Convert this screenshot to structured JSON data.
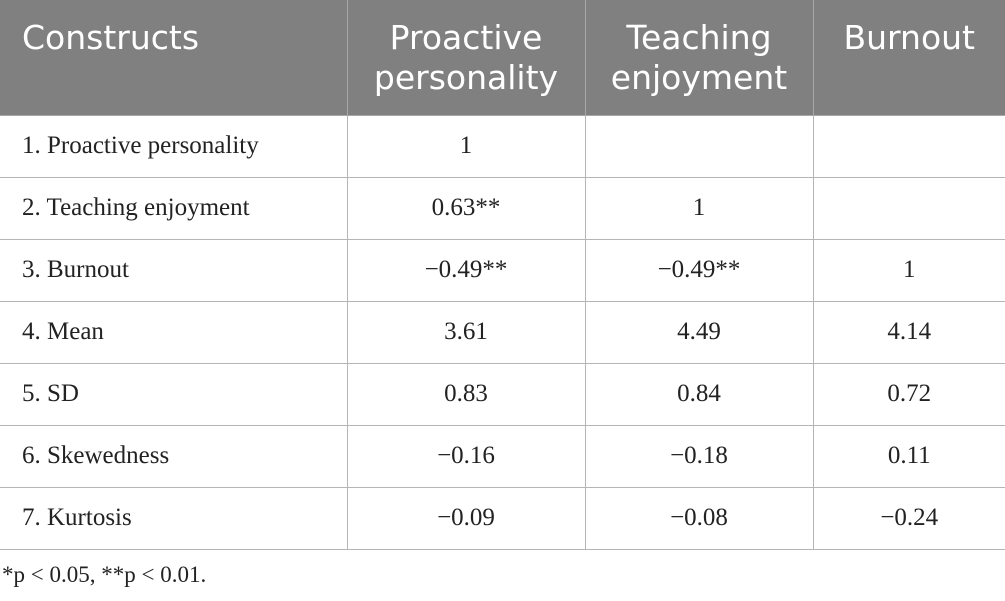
{
  "table": {
    "header": [
      "Constructs",
      "Proactive personality",
      "Teaching enjoyment",
      "Burnout"
    ],
    "rows": [
      [
        "1. Proactive personality",
        "1",
        null,
        null
      ],
      [
        "2. Teaching enjoyment",
        "0.63**",
        "1",
        null
      ],
      [
        "3. Burnout",
        "−0.49**",
        "−0.49**",
        "1"
      ],
      [
        "4. Mean",
        "3.61",
        "4.49",
        "4.14"
      ],
      [
        "5. SD",
        "0.83",
        "0.84",
        "0.72"
      ],
      [
        "6. Skewedness",
        "−0.16",
        "−0.18",
        "0.11"
      ],
      [
        "7. Kurtosis",
        "−0.09",
        "−0.08",
        "−0.24"
      ]
    ]
  },
  "footnote": "*p < 0.05, **p < 0.01."
}
